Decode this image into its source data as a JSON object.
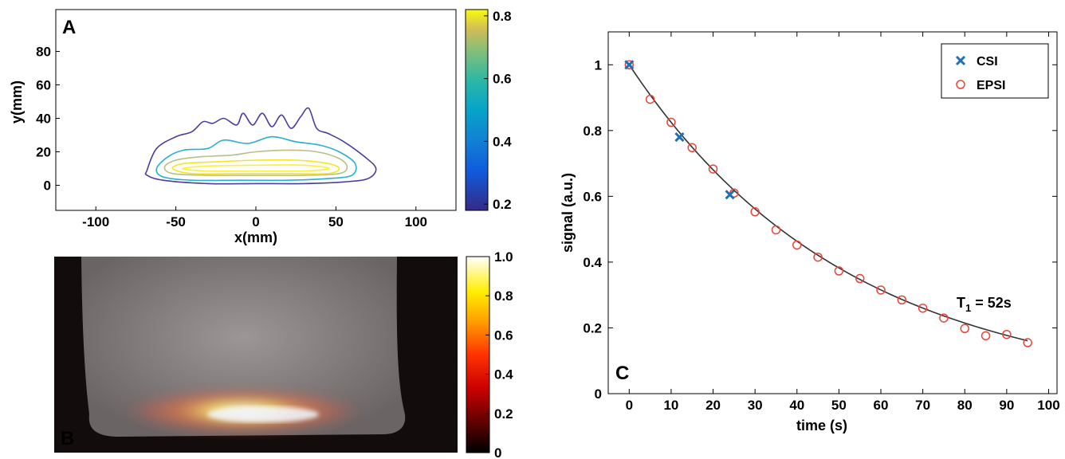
{
  "chart_data": [
    {
      "panel": "A",
      "type": "contour",
      "xlabel": "x(mm)",
      "ylabel": "y(mm)",
      "xlim": [
        -125,
        125
      ],
      "ylim": [
        -15,
        105
      ],
      "xticks": [
        -100,
        -50,
        0,
        50,
        100
      ],
      "yticks": [
        0,
        20,
        40,
        60,
        80
      ],
      "colorbar": {
        "range": [
          0.18,
          0.82
        ],
        "ticks": [
          0.2,
          0.4,
          0.6,
          0.8
        ],
        "colormap": "parula"
      },
      "contours": [
        {
          "level": 0.2,
          "color": "#4b3f9a",
          "points": [
            [
              -68,
              9
            ],
            [
              -62,
              22
            ],
            [
              -50,
              29
            ],
            [
              -40,
              32
            ],
            [
              -33,
              38
            ],
            [
              -27,
              37
            ],
            [
              -20,
              40
            ],
            [
              -12,
              36
            ],
            [
              -8,
              43
            ],
            [
              -2,
              36
            ],
            [
              4,
              43
            ],
            [
              10,
              35
            ],
            [
              16,
              42
            ],
            [
              22,
              34
            ],
            [
              28,
              41
            ],
            [
              33,
              46
            ],
            [
              38,
              34
            ],
            [
              45,
              31
            ],
            [
              55,
              26
            ],
            [
              68,
              17
            ],
            [
              75,
              10
            ],
            [
              70,
              4
            ],
            [
              55,
              2
            ],
            [
              30,
              1
            ],
            [
              0,
              1
            ],
            [
              -30,
              1
            ],
            [
              -58,
              3
            ],
            [
              -68,
              6
            ]
          ]
        },
        {
          "level": 0.4,
          "color": "#2aaed3",
          "points": [
            [
              -62,
              10
            ],
            [
              -55,
              17
            ],
            [
              -45,
              21
            ],
            [
              -30,
              22
            ],
            [
              -20,
              27
            ],
            [
              -5,
              25
            ],
            [
              10,
              29
            ],
            [
              25,
              26
            ],
            [
              40,
              24
            ],
            [
              52,
              20
            ],
            [
              62,
              13
            ],
            [
              60,
              6
            ],
            [
              45,
              4
            ],
            [
              20,
              3
            ],
            [
              -10,
              3
            ],
            [
              -40,
              3
            ],
            [
              -58,
              5
            ]
          ]
        },
        {
          "level": 0.6,
          "color": "#b8bf86",
          "points": [
            [
              -57,
              11
            ],
            [
              -50,
              15
            ],
            [
              -35,
              17
            ],
            [
              -15,
              18
            ],
            [
              0,
              20
            ],
            [
              20,
              21
            ],
            [
              38,
              20
            ],
            [
              52,
              16
            ],
            [
              57,
              11
            ],
            [
              52,
              7
            ],
            [
              30,
              6
            ],
            [
              0,
              6
            ],
            [
              -30,
              6
            ],
            [
              -52,
              7
            ]
          ]
        },
        {
          "level": 0.8,
          "color": "#f4e526",
          "points": [
            [
              -52,
              10
            ],
            [
              -45,
              13
            ],
            [
              -25,
              14
            ],
            [
              0,
              15
            ],
            [
              25,
              15
            ],
            [
              45,
              13
            ],
            [
              52,
              10
            ],
            [
              45,
              7
            ],
            [
              20,
              7
            ],
            [
              -10,
              7
            ],
            [
              -40,
              7
            ]
          ]
        },
        {
          "level": 0.85,
          "color": "#f9f23a",
          "points": [
            [
              -46,
              10
            ],
            [
              -30,
              11.5
            ],
            [
              0,
              12
            ],
            [
              30,
              12
            ],
            [
              46,
              10
            ],
            [
              30,
              8.5
            ],
            [
              0,
              8.5
            ],
            [
              -30,
              8.5
            ]
          ]
        }
      ]
    },
    {
      "panel": "B",
      "type": "heatmap",
      "colorbar": {
        "range": [
          0,
          1
        ],
        "ticks": [
          0,
          0.2,
          0.4,
          0.6,
          0.8,
          1.0
        ],
        "tick_labels": [
          "0",
          "0.2",
          "0.4",
          "0.6",
          "0.8",
          "1.0"
        ],
        "colormap": "hot"
      }
    },
    {
      "panel": "C",
      "type": "scatter",
      "xlabel": "time (s)",
      "ylabel": "signal (a.u.)",
      "xlim": [
        -5,
        102
      ],
      "ylim": [
        0,
        1.1
      ],
      "xticks": [
        0,
        10,
        20,
        30,
        40,
        50,
        60,
        70,
        80,
        90,
        100
      ],
      "yticks": [
        0,
        0.2,
        0.4,
        0.6,
        0.8,
        1
      ],
      "annotation": {
        "base": "T",
        "sub": "1",
        "rest": " = 52s"
      },
      "legend_position": "top-right",
      "series": [
        {
          "name": "CSI",
          "marker": "x",
          "color": "#1f6fb5",
          "x": [
            0,
            12,
            24
          ],
          "y": [
            1.0,
            0.78,
            0.605
          ]
        },
        {
          "name": "EPSI",
          "marker": "o",
          "color": "#e8443a",
          "x": [
            0,
            5,
            10,
            15,
            20,
            25,
            30,
            35,
            40,
            45,
            50,
            55,
            60,
            65,
            70,
            75,
            80,
            85,
            90,
            95
          ],
          "y": [
            1.0,
            0.895,
            0.825,
            0.748,
            0.683,
            0.61,
            0.553,
            0.498,
            0.452,
            0.415,
            0.373,
            0.35,
            0.315,
            0.285,
            0.26,
            0.23,
            0.198,
            0.176,
            0.18,
            0.155
          ]
        },
        {
          "name": "",
          "type": "fit_curve",
          "color": "#333333",
          "t1": 52,
          "x_range": [
            0,
            95
          ]
        }
      ]
    }
  ],
  "panel_labels": {
    "a": "A",
    "b": "B",
    "c": "C"
  }
}
